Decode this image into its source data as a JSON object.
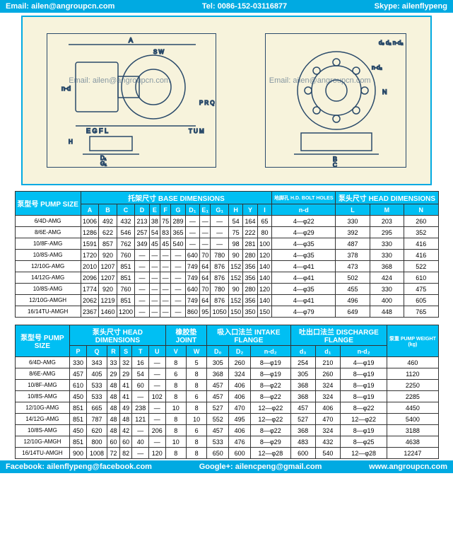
{
  "header": {
    "email_label": "Email:",
    "email": "ailen@angroupcn.com",
    "tel_label": "Tel:",
    "tel": "0086-152-03116877",
    "skype_label": "Skype:",
    "skype": "ailenflypeng"
  },
  "footer": {
    "fb_label": "Facebook:",
    "fb": "ailenflypeng@facebook.com",
    "gp_label": "Google+:",
    "gp": "ailencpeng@gmail.com",
    "site": "www.angroupcn.com"
  },
  "watermark1": "Email: ailen@angroupcn.com",
  "watermark2": "Email: ailen@angroupcn.com",
  "table1": {
    "pump_size_hdr": "泵型号\nPUMP SIZE",
    "base_dim_hdr": "托架尺寸 BASE DIMENSIONS",
    "bolt_hdr": "地脚孔\nH.D.\nBOLT HOLES",
    "head_dim_hdr": "泵头尺寸\nHEAD DIMENSIONS",
    "cols": [
      "A",
      "B",
      "C",
      "D",
      "E",
      "F",
      "G",
      "D₁",
      "E₁",
      "G₁",
      "H",
      "Y",
      "I",
      "n-d",
      "L",
      "M",
      "N"
    ],
    "rows": [
      [
        "6/4D-AMG",
        "1006",
        "492",
        "432",
        "213",
        "38",
        "75",
        "289",
        "—",
        "—",
        "—",
        "54",
        "164",
        "65",
        "4—φ22",
        "330",
        "203",
        "260"
      ],
      [
        "8/6E-AMG",
        "1286",
        "622",
        "546",
        "257",
        "54",
        "83",
        "365",
        "—",
        "—",
        "—",
        "75",
        "222",
        "80",
        "4—φ29",
        "392",
        "295",
        "352"
      ],
      [
        "10/8F-AMG",
        "1591",
        "857",
        "762",
        "349",
        "45",
        "45",
        "540",
        "—",
        "—",
        "—",
        "98",
        "281",
        "100",
        "4—φ35",
        "487",
        "330",
        "416"
      ],
      [
        "10/8S-AMG",
        "1720",
        "920",
        "760",
        "—",
        "—",
        "—",
        "—",
        "640",
        "70",
        "780",
        "90",
        "280",
        "120",
        "4—φ35",
        "378",
        "330",
        "416"
      ],
      [
        "12/10G-AMG",
        "2010",
        "1207",
        "851",
        "—",
        "—",
        "—",
        "—",
        "749",
        "64",
        "876",
        "152",
        "356",
        "140",
        "4—φ41",
        "473",
        "368",
        "522"
      ],
      [
        "14/12G-AMG",
        "2096",
        "1207",
        "851",
        "—",
        "—",
        "—",
        "—",
        "749",
        "64",
        "876",
        "152",
        "356",
        "140",
        "4—φ41",
        "502",
        "424",
        "610"
      ],
      [
        "10/8S-AMG",
        "1774",
        "920",
        "760",
        "—",
        "—",
        "—",
        "—",
        "640",
        "70",
        "780",
        "90",
        "280",
        "120",
        "4—φ35",
        "455",
        "330",
        "475"
      ],
      [
        "12/10G-AMGH",
        "2062",
        "1219",
        "851",
        "—",
        "—",
        "—",
        "—",
        "749",
        "64",
        "876",
        "152",
        "356",
        "140",
        "4—φ41",
        "496",
        "400",
        "605"
      ],
      [
        "16/14TU-AMGH",
        "2367",
        "1460",
        "1200",
        "—",
        "—",
        "—",
        "—",
        "860",
        "95",
        "1050",
        "150",
        "350",
        "150",
        "4—φ79",
        "649",
        "448",
        "765"
      ]
    ]
  },
  "table2": {
    "pump_size_hdr": "泵型号\nPUMP SIZE",
    "head_dim_hdr": "泵头尺寸\nHEAD DIMENSIONS",
    "joint_hdr": "橡胶垫\nJOINT",
    "intake_hdr": "吸入口法兰\nINTAKE FLANGE",
    "discharge_hdr": "吐出口法兰\nDISCHARGE FLANGE",
    "weight_hdr": "泵重\nPUMP\nWEIGHT\n(kg)",
    "cols": [
      "P",
      "Q",
      "R",
      "S",
      "T",
      "U",
      "V",
      "W",
      "D₀",
      "D₂",
      "n-d₂",
      "d₃",
      "d₁",
      "n-d₂"
    ],
    "rows": [
      [
        "6/4D-AMG",
        "330",
        "343",
        "33",
        "32",
        "16",
        "—",
        "8",
        "5",
        "305",
        "260",
        "8—φ19",
        "254",
        "210",
        "4—φ19",
        "460"
      ],
      [
        "8/6E-AMG",
        "457",
        "405",
        "29",
        "29",
        "54",
        "—",
        "6",
        "8",
        "368",
        "324",
        "8—φ19",
        "305",
        "260",
        "8—φ19",
        "1120"
      ],
      [
        "10/8F-AMG",
        "610",
        "533",
        "48",
        "41",
        "60",
        "—",
        "8",
        "8",
        "457",
        "406",
        "8—φ22",
        "368",
        "324",
        "8—φ19",
        "2250"
      ],
      [
        "10/8S-AMG",
        "450",
        "533",
        "48",
        "41",
        "—",
        "102",
        "8",
        "6",
        "457",
        "406",
        "8—φ22",
        "368",
        "324",
        "8—φ19",
        "2285"
      ],
      [
        "12/10G-AMG",
        "851",
        "665",
        "48",
        "49",
        "238",
        "—",
        "10",
        "8",
        "527",
        "470",
        "12—φ22",
        "457",
        "406",
        "8—φ22",
        "4450"
      ],
      [
        "14/12G-AMG",
        "851",
        "787",
        "48",
        "48",
        "121",
        "—",
        "8",
        "10",
        "552",
        "495",
        "12—φ22",
        "527",
        "470",
        "12—φ22",
        "5400"
      ],
      [
        "10/8S-AMG",
        "450",
        "620",
        "48",
        "42",
        "—",
        "206",
        "8",
        "6",
        "457",
        "406",
        "8—φ22",
        "368",
        "324",
        "8—φ19",
        "3188"
      ],
      [
        "12/10G-AMGH",
        "851",
        "800",
        "60",
        "60",
        "40",
        "—",
        "10",
        "8",
        "533",
        "476",
        "8—φ29",
        "483",
        "432",
        "8—φ25",
        "4638"
      ],
      [
        "16/14TU-AMGH",
        "900",
        "1008",
        "72",
        "82",
        "—",
        "120",
        "8",
        "8",
        "650",
        "600",
        "12—φ28",
        "600",
        "540",
        "12—φ28",
        "12247"
      ]
    ]
  },
  "colors": {
    "cyan": "#00aae2",
    "table_cyan": "#00bff3",
    "cream": "#f7f3dc",
    "navy": "#2a4a6a"
  }
}
